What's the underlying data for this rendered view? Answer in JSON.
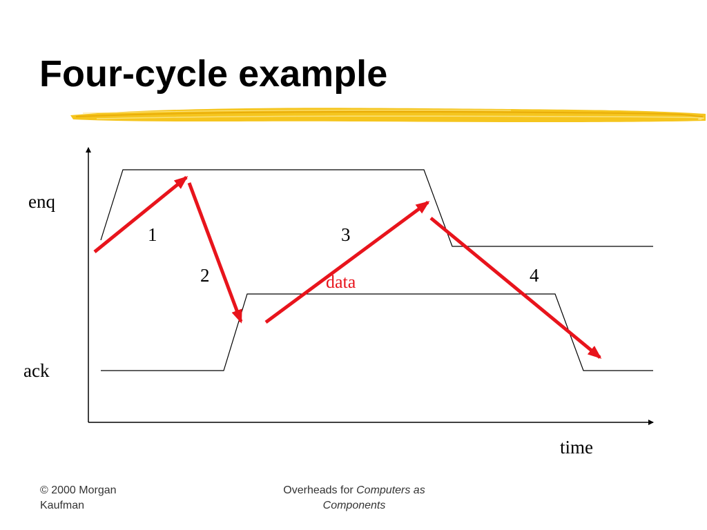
{
  "slide": {
    "title": "Four-cycle example"
  },
  "diagram": {
    "signals": {
      "enq": "enq",
      "ack": "ack"
    },
    "time_axis_label": "time",
    "steps": [
      "1",
      "2",
      "3",
      "4"
    ],
    "data_label": "data",
    "colors": {
      "arrow": "#e8141c",
      "waveform": "#000000",
      "highlight": "#f2c318"
    }
  },
  "footer": {
    "copyright_line1": "© 2000 Morgan",
    "copyright_line2": "Kaufman",
    "overheads_prefix": "Overheads for ",
    "overheads_book_line1": "Computers as",
    "overheads_book_line2": "Components"
  }
}
